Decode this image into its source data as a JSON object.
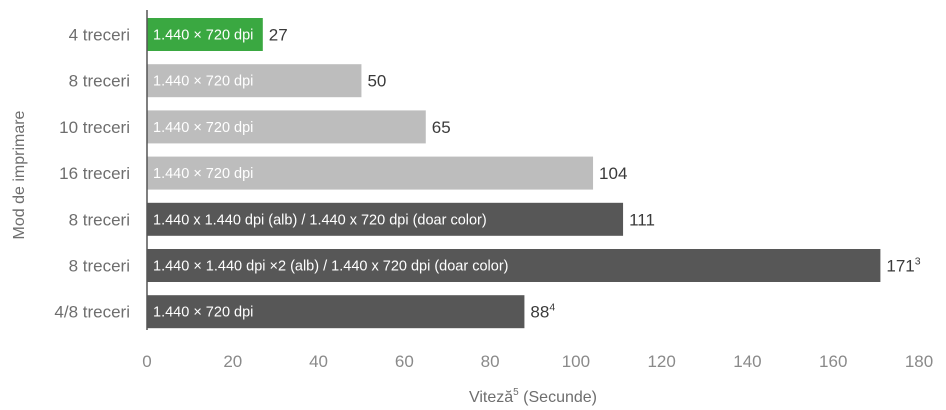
{
  "chart_data": {
    "type": "bar",
    "orientation": "horizontal",
    "categories": [
      "4 treceri",
      "8 treceri",
      "10 treceri",
      "16 treceri",
      "8 treceri",
      "8 treceri",
      "4/8 treceri"
    ],
    "bar_labels": [
      "1.440 × 720 dpi",
      "1.440 × 720 dpi",
      "1.440 × 720 dpi",
      "1.440 × 720 dpi",
      "1.440 x 1.440 dpi (alb) / 1.440 x 720 dpi (doar color)",
      "1.440 × 1.440 dpi ×2 (alb) / 1.440 x 720 dpi (doar color)",
      "1.440 × 720 dpi"
    ],
    "values": [
      27,
      50,
      65,
      104,
      111,
      171,
      88
    ],
    "value_labels": [
      "27",
      "50",
      "65",
      "104",
      "111",
      "171",
      "88"
    ],
    "value_superscripts": [
      "",
      "",
      "",
      "",
      "",
      "3",
      "4"
    ],
    "bar_colors": [
      "#3aa841",
      "#bdbdbd",
      "#bdbdbd",
      "#bdbdbd",
      "#575757",
      "#575757",
      "#575757"
    ],
    "xlim": [
      0,
      180
    ],
    "xticks": [
      0,
      20,
      40,
      60,
      80,
      100,
      120,
      140,
      160,
      180
    ],
    "xlabel": "Viteză",
    "xlabel_superscript": "5",
    "xlabel_suffix": " (Secunde)",
    "ylabel": "Mod de imprimare",
    "grid": false
  }
}
